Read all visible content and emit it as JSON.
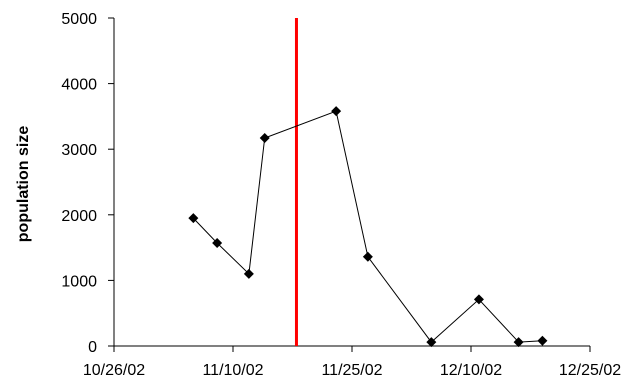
{
  "chart_data": {
    "type": "scatter",
    "title": "",
    "xlabel": "",
    "ylabel": "population size",
    "x_range": [
      "10/26/02",
      "12/25/02"
    ],
    "ylim": [
      0,
      5000
    ],
    "x_ticks": [
      "10/26/02",
      "11/10/02",
      "11/25/02",
      "12/10/02",
      "12/25/02"
    ],
    "y_ticks": [
      0,
      1000,
      2000,
      3000,
      4000,
      5000
    ],
    "grid": false,
    "legend": "none",
    "series": [
      {
        "color": "#000000",
        "marker": "diamond",
        "points": [
          {
            "x": "11/5/02",
            "y": 1950
          },
          {
            "x": "11/8/02",
            "y": 1570
          },
          {
            "x": "11/12/02",
            "y": 1100
          },
          {
            "x": "11/14/02",
            "y": 3170
          },
          {
            "x": "11/23/02",
            "y": 3580
          },
          {
            "x": "11/27/02",
            "y": 1360
          },
          {
            "x": "12/5/02",
            "y": 60
          },
          {
            "x": "12/11/02",
            "y": 710
          },
          {
            "x": "12/16/02",
            "y": 60
          },
          {
            "x": "12/19/02",
            "y": 80
          }
        ]
      }
    ],
    "vertical_line": {
      "x": "11/18/02",
      "color": "#ff0000"
    }
  }
}
